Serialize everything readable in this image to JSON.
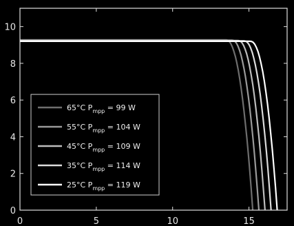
{
  "chart_data": {
    "type": "line",
    "title": "",
    "xlabel": "",
    "ylabel": "",
    "xlim": [
      0,
      17.5
    ],
    "ylim": [
      0,
      11
    ],
    "x_ticks": [
      0,
      5,
      10,
      15
    ],
    "y_ticks": [
      0,
      2,
      4,
      6,
      8,
      10
    ],
    "grid": false,
    "legend": "bottom-left",
    "background": "#000000",
    "series": [
      {
        "label_temp": "65",
        "label_p": "99",
        "name": "65°C P_mpp = 99 W",
        "color": "#6e6e6e",
        "isc": 9.28,
        "knee_x": 13.5,
        "voc": 15.25
      },
      {
        "label_temp": "55",
        "label_p": "104",
        "name": "55°C P_mpp = 104 W",
        "color": "#9a9a9a",
        "isc": 9.26,
        "knee_x": 13.9,
        "voc": 15.65
      },
      {
        "label_temp": "45",
        "label_p": "109",
        "name": "45°C P_mpp = 109 W",
        "color": "#bdbdbd",
        "isc": 9.24,
        "knee_x": 14.3,
        "voc": 16.05
      },
      {
        "label_temp": "35",
        "label_p": "114",
        "name": "35°C P_mpp = 114 W",
        "color": "#dcdcdc",
        "isc": 9.22,
        "knee_x": 14.7,
        "voc": 16.45
      },
      {
        "label_temp": "25",
        "label_p": "119",
        "name": "25°C P_mpp = 119 W",
        "color": "#ffffff",
        "isc": 9.2,
        "knee_x": 15.1,
        "voc": 16.85
      }
    ]
  }
}
